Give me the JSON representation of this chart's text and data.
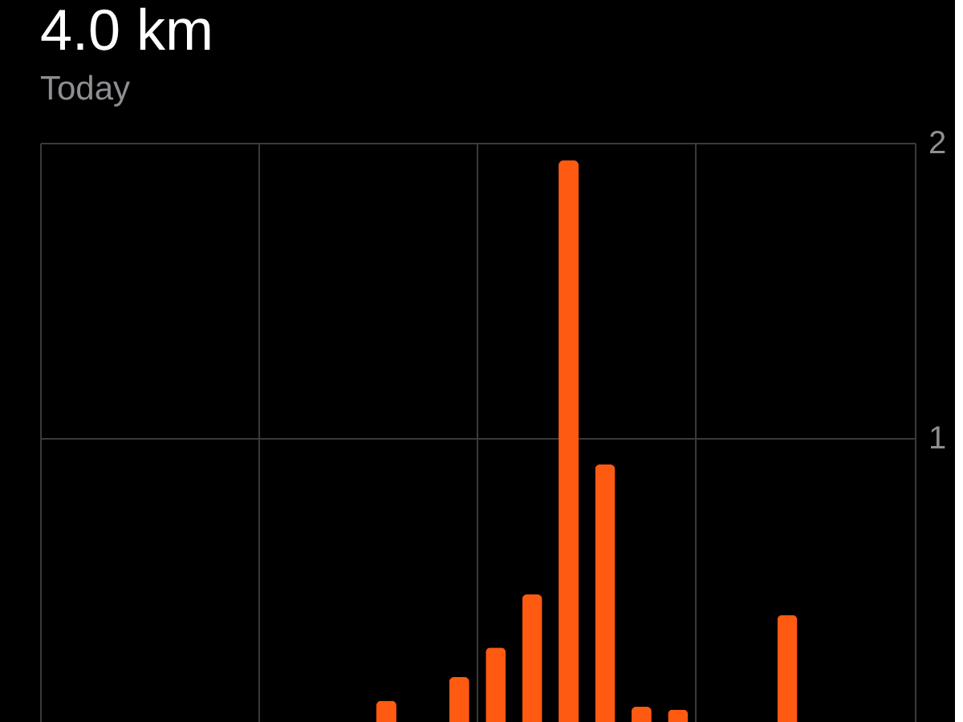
{
  "chart_data": {
    "type": "bar",
    "title": "4.0 km",
    "subtitle": "Today",
    "categories": [
      null,
      null,
      null,
      null,
      null,
      null,
      null,
      null,
      null,
      null,
      null,
      null,
      null,
      null,
      null,
      null,
      null,
      null,
      null,
      null,
      null,
      null,
      null,
      null
    ],
    "values": [
      null,
      null,
      null,
      null,
      null,
      null,
      null,
      null,
      null,
      0.11,
      null,
      0.19,
      0.29,
      0.47,
      1.94,
      0.91,
      0.09,
      0.08,
      null,
      null,
      0.4,
      null,
      null,
      null
    ],
    "color": "#ff5a12",
    "ylim": [
      0,
      2
    ],
    "yticks": [
      1,
      2
    ],
    "grid": true,
    "tick_labels": "y"
  }
}
